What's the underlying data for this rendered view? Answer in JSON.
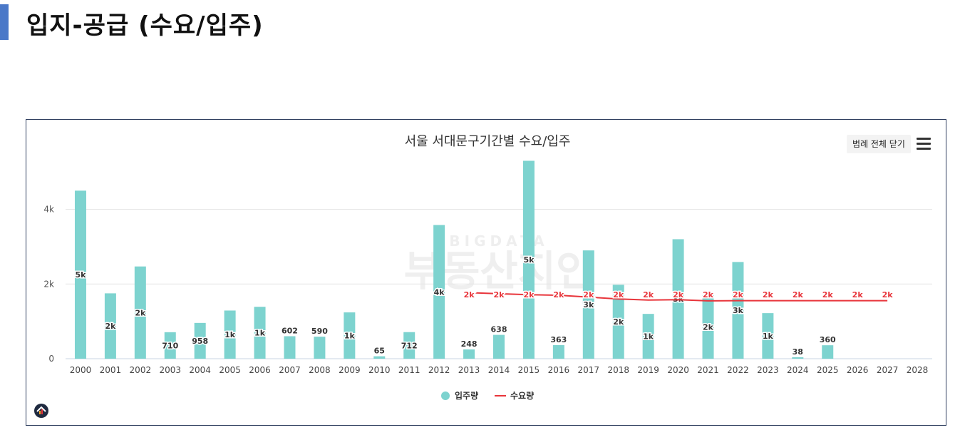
{
  "page": {
    "title": "입지-공급 (수요/입주)"
  },
  "toolbar": {
    "legend_toggle_label": "범례 전체 닫기"
  },
  "icons": {
    "menu": "hamburger-menu-icon",
    "logo": "home-logo-icon"
  },
  "watermark": {
    "top": "BIGDATA",
    "bottom": "부동산지인"
  },
  "colors": {
    "supply_bar": "#7dd3cf",
    "demand_line": "#e8353b",
    "frame_border": "#2f3f5f",
    "accent": "#4a78c8"
  },
  "chart_data": {
    "type": "bar",
    "title": "서울 서대문구기간별 수요/입주",
    "xlabel": "",
    "ylabel": "",
    "ylim": [
      0,
      5500
    ],
    "yticks": [
      0,
      2000,
      4000
    ],
    "ytick_labels": [
      "0",
      "2k",
      "4k"
    ],
    "categories": [
      "2000",
      "2001",
      "2002",
      "2003",
      "2004",
      "2005",
      "2006",
      "2007",
      "2008",
      "2009",
      "2010",
      "2011",
      "2012",
      "2013",
      "2014",
      "2015",
      "2016",
      "2017",
      "2018",
      "2019",
      "2020",
      "2021",
      "2022",
      "2023",
      "2024",
      "2025",
      "2026",
      "2027",
      "2028"
    ],
    "legend": {
      "position": "bottom-center",
      "items": [
        "입주량",
        "수요량"
      ]
    },
    "grid": true,
    "series": [
      {
        "name": "입주량",
        "kind": "bar",
        "values": [
          4500,
          1750,
          2470,
          710,
          958,
          1290,
          1390,
          602,
          590,
          1240,
          65,
          712,
          3580,
          248,
          638,
          5300,
          363,
          2900,
          1980,
          1200,
          3200,
          1700,
          2590,
          1220,
          38,
          360,
          null,
          null,
          null
        ],
        "labels": [
          "5k",
          "2k",
          "2k",
          "710",
          "958",
          "1k",
          "1k",
          "602",
          "590",
          "1k",
          "65",
          "712",
          "4k",
          "248",
          "638",
          "5k",
          "363",
          "3k",
          "2k",
          "1k",
          "3k",
          "2k",
          "3k",
          "1k",
          "38",
          "360",
          "",
          "",
          ""
        ]
      },
      {
        "name": "수요량",
        "kind": "line",
        "values": [
          null,
          null,
          null,
          null,
          null,
          null,
          null,
          null,
          null,
          null,
          null,
          null,
          null,
          1770,
          1740,
          1715,
          1700,
          1650,
          1600,
          1570,
          1580,
          1550,
          1555,
          1555,
          1555,
          1555,
          1555,
          1555,
          null
        ],
        "labels": [
          "",
          "",
          "",
          "",
          "",
          "",
          "",
          "",
          "",
          "",
          "",
          "",
          "",
          "2k",
          "2k",
          "2k",
          "2k",
          "2k",
          "2k",
          "2k",
          "2k",
          "2k",
          "2k",
          "2k",
          "2k",
          "2k",
          "2k",
          "2k",
          ""
        ]
      }
    ]
  }
}
